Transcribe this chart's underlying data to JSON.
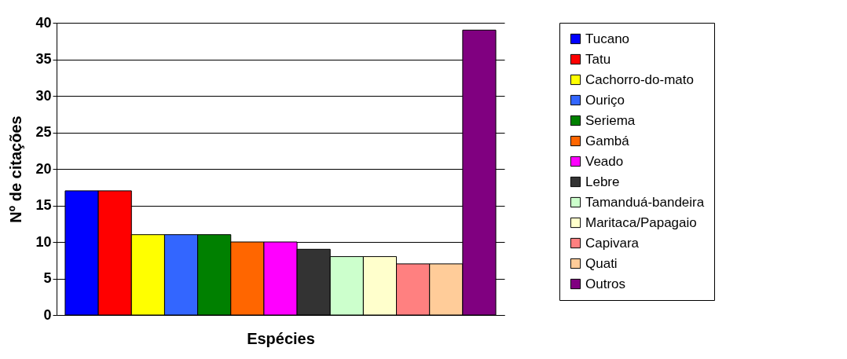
{
  "chart_data": {
    "type": "bar",
    "xlabel": "Espécies",
    "ylabel": "Nº de citações",
    "categories": [
      null
    ],
    "ylim": [
      0,
      40
    ],
    "yticks": [
      0,
      5,
      10,
      15,
      20,
      25,
      30,
      35,
      40
    ],
    "grid": "y",
    "legend": "right",
    "tick_labels": "y",
    "series": [
      {
        "name": "Tucano",
        "color": "#0000ff",
        "values": [
          17
        ]
      },
      {
        "name": "Tatu",
        "color": "#ff0000",
        "values": [
          17
        ]
      },
      {
        "name": "Cachorro-do-mato",
        "color": "#ffff00",
        "values": [
          11
        ]
      },
      {
        "name": "Ouriço",
        "color": "#3366ff",
        "values": [
          11
        ]
      },
      {
        "name": "Seriema",
        "color": "#008000",
        "values": [
          11
        ]
      },
      {
        "name": "Gambá",
        "color": "#ff6600",
        "values": [
          10
        ]
      },
      {
        "name": "Veado",
        "color": "#ff00ff",
        "values": [
          10
        ]
      },
      {
        "name": "Lebre",
        "color": "#333333",
        "values": [
          9
        ]
      },
      {
        "name": "Tamanduá-bandeira",
        "color": "#ccffcc",
        "values": [
          8
        ]
      },
      {
        "name": "Maritaca/Papagaio",
        "color": "#ffffcc",
        "values": [
          8
        ]
      },
      {
        "name": "Capivara",
        "color": "#ff8080",
        "values": [
          7
        ]
      },
      {
        "name": "Quati",
        "color": "#ffcc99",
        "values": [
          7
        ]
      },
      {
        "name": "Outros",
        "color": "#800080",
        "values": [
          39
        ]
      }
    ]
  }
}
